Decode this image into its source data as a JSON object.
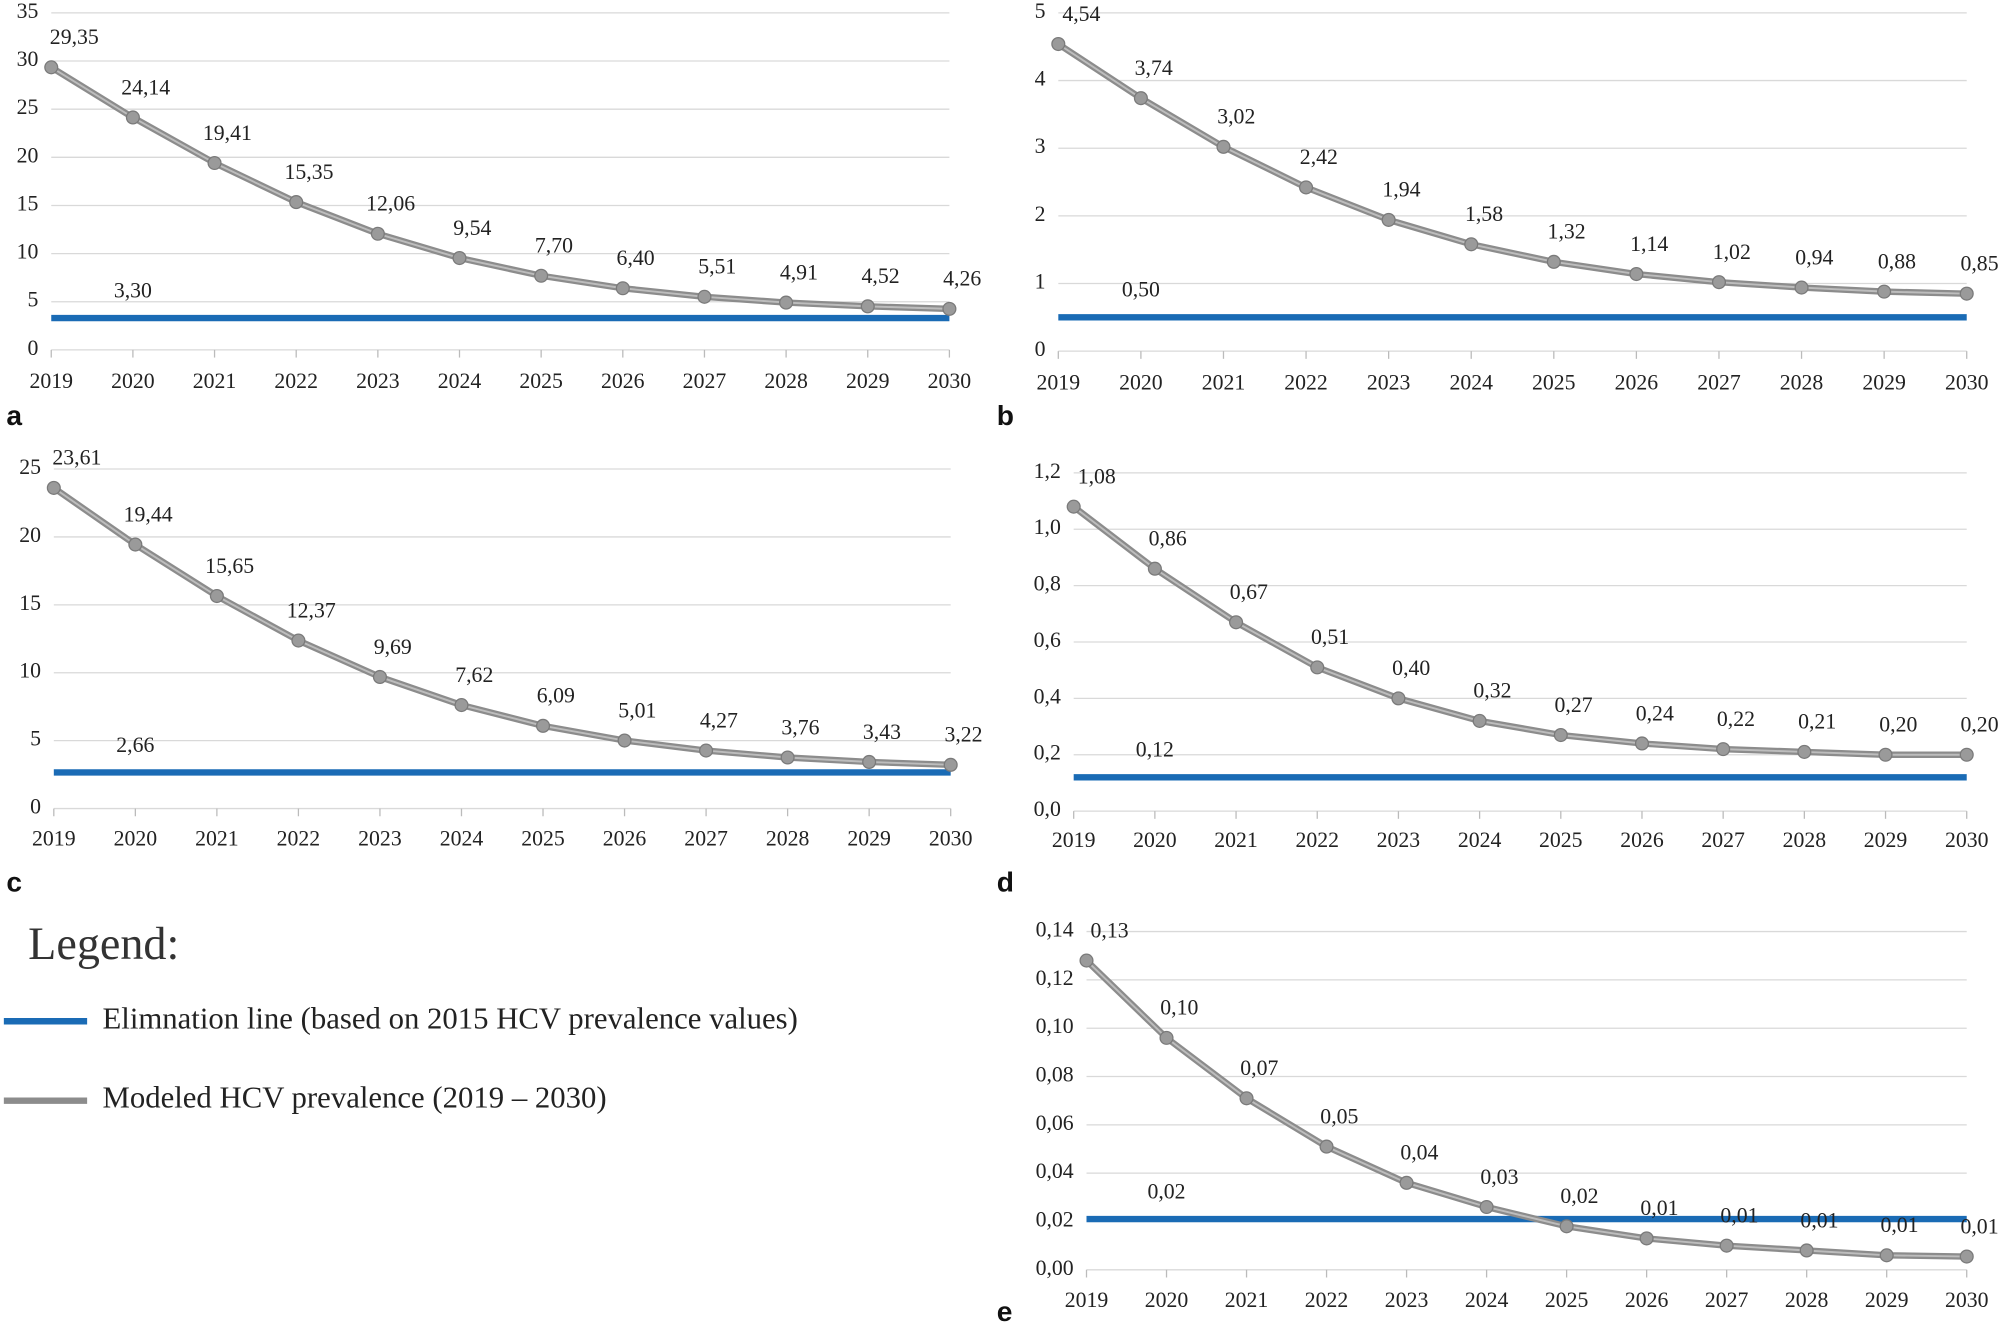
{
  "chart_data": [
    {
      "type": "line",
      "panel_label": "a",
      "categories": [
        "2019",
        "2020",
        "2021",
        "2022",
        "2023",
        "2024",
        "2025",
        "2026",
        "2027",
        "2028",
        "2029",
        "2030"
      ],
      "values": [
        29.35,
        24.14,
        19.41,
        15.35,
        12.06,
        9.54,
        7.7,
        6.4,
        5.51,
        4.91,
        4.52,
        4.26
      ],
      "value_labels": [
        "29,35",
        "24,14",
        "19,41",
        "15,35",
        "12,06",
        "9,54",
        "7,70",
        "6,40",
        "5,51",
        "4,91",
        "4,52",
        "4,26"
      ],
      "line_color": "#8c8c8c",
      "threshold": {
        "value": 3.3,
        "label": "3,30",
        "color": "#1a6bb5"
      },
      "ylim": [
        0,
        35
      ],
      "yticks": [
        0,
        5,
        10,
        15,
        20,
        25,
        30,
        35
      ],
      "grid": true
    },
    {
      "type": "line",
      "panel_label": "b",
      "categories": [
        "2019",
        "2020",
        "2021",
        "2022",
        "2023",
        "2024",
        "2025",
        "2026",
        "2027",
        "2028",
        "2029",
        "2030"
      ],
      "values": [
        4.54,
        3.74,
        3.02,
        2.42,
        1.94,
        1.58,
        1.32,
        1.14,
        1.02,
        0.94,
        0.88,
        0.85
      ],
      "value_labels": [
        "4,54",
        "3,74",
        "3,02",
        "2,42",
        "1,94",
        "1,58",
        "1,32",
        "1,14",
        "1,02",
        "0,94",
        "0,88",
        "0,85"
      ],
      "line_color": "#8c8c8c",
      "threshold": {
        "value": 0.5,
        "label": "0,50",
        "color": "#1a6bb5"
      },
      "ylim": [
        0,
        5
      ],
      "yticks": [
        0,
        1,
        2,
        3,
        4,
        5
      ],
      "grid": true
    },
    {
      "type": "line",
      "panel_label": "c",
      "categories": [
        "2019",
        "2020",
        "2021",
        "2022",
        "2023",
        "2024",
        "2025",
        "2026",
        "2027",
        "2028",
        "2029",
        "2030"
      ],
      "values": [
        23.61,
        19.44,
        15.65,
        12.37,
        9.69,
        7.62,
        6.09,
        5.01,
        4.27,
        3.76,
        3.43,
        3.22
      ],
      "value_labels": [
        "23,61",
        "19,44",
        "15,65",
        "12,37",
        "9,69",
        "7,62",
        "6,09",
        "5,01",
        "4,27",
        "3,76",
        "3,43",
        "3,22"
      ],
      "line_color": "#8c8c8c",
      "threshold": {
        "value": 2.66,
        "label": "2,66",
        "color": "#1a6bb5"
      },
      "ylim": [
        0,
        25
      ],
      "yticks": [
        0,
        5,
        10,
        15,
        20,
        25
      ],
      "grid": true
    },
    {
      "type": "line",
      "panel_label": "d",
      "categories": [
        "2019",
        "2020",
        "2021",
        "2022",
        "2023",
        "2024",
        "2025",
        "2026",
        "2027",
        "2028",
        "2029",
        "2030"
      ],
      "values": [
        1.08,
        0.86,
        0.67,
        0.51,
        0.4,
        0.32,
        0.27,
        0.24,
        0.22,
        0.21,
        0.2,
        0.2
      ],
      "value_labels": [
        "1,08",
        "0,86",
        "0,67",
        "0,51",
        "0,40",
        "0,32",
        "0,27",
        "0,24",
        "0,22",
        "0,21",
        "0,20",
        "0,20"
      ],
      "line_color": "#8c8c8c",
      "threshold": {
        "value": 0.12,
        "label": "0,12",
        "color": "#1a6bb5"
      },
      "ylim": [
        0,
        1.2
      ],
      "yticks": [
        {
          "value": 0,
          "label": "0,0"
        },
        {
          "value": 0.2,
          "label": "0,2"
        },
        {
          "value": 0.4,
          "label": "0,4"
        },
        {
          "value": 0.6,
          "label": "0,6"
        },
        {
          "value": 0.8,
          "label": "0,8"
        },
        {
          "value": 1.0,
          "label": "1,0"
        },
        {
          "value": 1.2,
          "label": "1,2"
        }
      ],
      "grid": true
    },
    {
      "type": "line",
      "panel_label": "e",
      "categories": [
        "2019",
        "2020",
        "2021",
        "2022",
        "2023",
        "2024",
        "2025",
        "2026",
        "2027",
        "2028",
        "2029",
        "2030"
      ],
      "values": [
        0.128,
        0.096,
        0.071,
        0.051,
        0.036,
        0.026,
        0.018,
        0.013,
        0.01,
        0.008,
        0.006,
        0.0055
      ],
      "value_labels": [
        "0,13",
        "0,10",
        "0,07",
        "0,05",
        "0,04",
        "0,03",
        "0,02",
        "0,01",
        "0,01",
        "0,01",
        "0,01",
        "0,01"
      ],
      "line_color": "#8c8c8c",
      "threshold": {
        "value": 0.021,
        "label": "0,02",
        "color": "#1a6bb5"
      },
      "ylim": [
        0,
        0.14
      ],
      "yticks": [
        {
          "value": 0,
          "label": "0,00"
        },
        {
          "value": 0.02,
          "label": "0,02"
        },
        {
          "value": 0.04,
          "label": "0,04"
        },
        {
          "value": 0.06,
          "label": "0,06"
        },
        {
          "value": 0.08,
          "label": "0,08"
        },
        {
          "value": 0.1,
          "label": "0,10"
        },
        {
          "value": 0.12,
          "label": "0,12"
        },
        {
          "value": 0.14,
          "label": "0,14"
        }
      ],
      "grid": true
    }
  ],
  "legend": {
    "title": "Legend:",
    "entries": [
      {
        "label": "Elimnation line (based on 2015 HCV prevalence values)",
        "color": "#1a6bb5"
      },
      {
        "label": "Modeled HCV prevalence (2019 – 2030)",
        "color": "#8c8c8c"
      }
    ]
  }
}
